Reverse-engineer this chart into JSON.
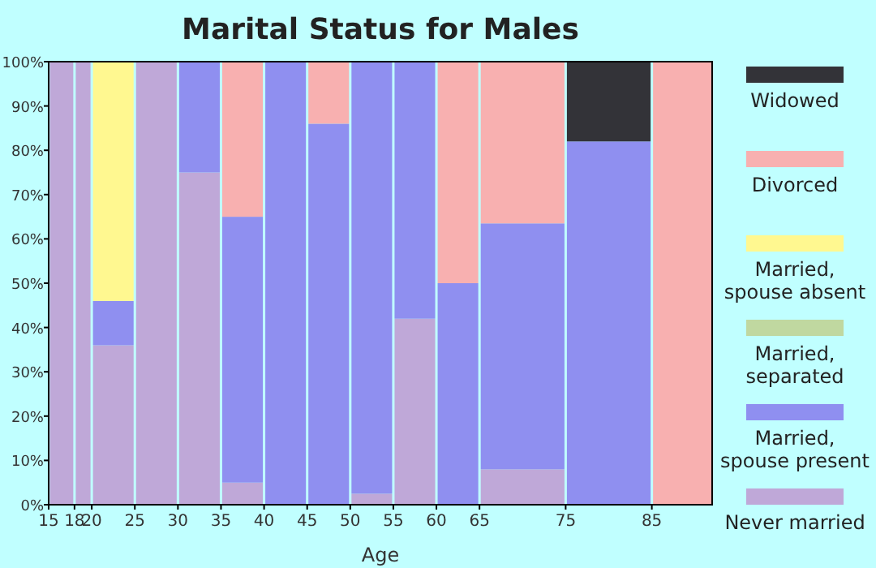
{
  "chart_data": {
    "type": "bar",
    "stacked": true,
    "title": "Marital Status for Males",
    "xlabel": "Age",
    "x": [
      16.5,
      19,
      22.5,
      27.5,
      32.5,
      37.5,
      42.5,
      47.5,
      52.5,
      57.5,
      62.5,
      70,
      80,
      88.5
    ],
    "grid": "x",
    "xlim": [
      15,
      92
    ],
    "xticks": [
      15,
      18,
      20,
      25,
      30,
      35,
      40,
      45,
      50,
      55,
      60,
      65,
      75,
      85
    ],
    "ylim": [
      0,
      100
    ],
    "yticks": [
      {
        "value": 0,
        "label": "0%"
      },
      {
        "value": 10,
        "label": "10%"
      },
      {
        "value": 20,
        "label": "20%"
      },
      {
        "value": 30,
        "label": "30%"
      },
      {
        "value": 40,
        "label": "40%"
      },
      {
        "value": 50,
        "label": "50%"
      },
      {
        "value": 60,
        "label": "60%"
      },
      {
        "value": 70,
        "label": "70%"
      },
      {
        "value": 80,
        "label": "80%"
      },
      {
        "value": 90,
        "label": "90%"
      },
      {
        "value": 100,
        "label": "100%"
      }
    ],
    "legend": "right",
    "series": [
      {
        "name": "Never married",
        "color": "#bfa8d8",
        "values": [
          100,
          100,
          36,
          100,
          75,
          5,
          0,
          0,
          2.5,
          42,
          0,
          8,
          0,
          0
        ]
      },
      {
        "name": "Married, spouse present",
        "color": "#8f8ff0",
        "values": [
          0,
          0,
          10,
          0,
          25,
          60,
          100,
          86,
          97.5,
          58,
          50,
          55.5,
          82,
          0
        ]
      },
      {
        "name": "Married, separated",
        "color": "#c0d8a0",
        "values": [
          0,
          0,
          0,
          0,
          0,
          0,
          0,
          0,
          0,
          0,
          0,
          0,
          0,
          0
        ]
      },
      {
        "name": "Married, spouse absent",
        "color": "#fff890",
        "values": [
          0,
          0,
          54,
          0,
          0,
          0,
          0,
          0,
          0,
          0,
          0,
          0,
          0,
          0
        ]
      },
      {
        "name": "Divorced",
        "color": "#f8b0b0",
        "values": [
          0,
          0,
          0,
          0,
          0,
          35,
          0,
          14,
          0,
          0,
          50,
          36.5,
          0,
          100
        ]
      },
      {
        "name": "Widowed",
        "color": "#333338",
        "values": [
          0,
          0,
          0,
          0,
          0,
          0,
          0,
          0,
          0,
          0,
          0,
          0,
          18,
          0
        ]
      }
    ]
  }
}
